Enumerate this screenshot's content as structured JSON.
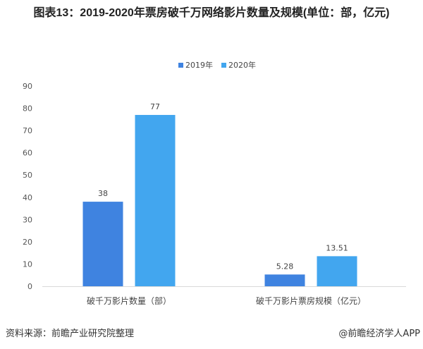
{
  "chart_data": {
    "type": "bar",
    "title": "图表13：2019-2020年票房破千万网络影片数量及规模(单位：部，亿元)",
    "categories": [
      "破千万影片数量（部）",
      "破千万影片票房规模（亿元）"
    ],
    "series": [
      {
        "name": "2019年",
        "values": [
          38,
          5.28
        ],
        "color": "#3f83e0"
      },
      {
        "name": "2020年",
        "values": [
          77,
          13.51
        ],
        "color": "#42a6ef"
      }
    ],
    "data_labels": [
      [
        "38",
        "5.28"
      ],
      [
        "77",
        "13.51"
      ]
    ],
    "ylim": [
      0,
      90
    ],
    "yticks": [
      0,
      10,
      20,
      30,
      40,
      50,
      60,
      70,
      80,
      90
    ],
    "grid": false,
    "legend": "top-center",
    "xlabel": "",
    "ylabel": ""
  },
  "footer": {
    "source": "资料来源：前瞻产业研究院整理",
    "credit": "@前瞻经济学人APP"
  }
}
